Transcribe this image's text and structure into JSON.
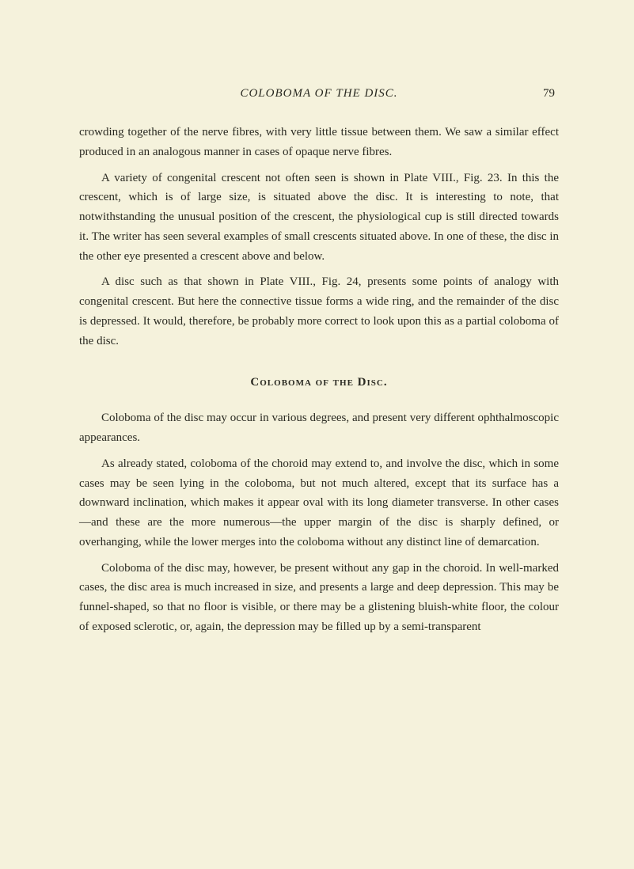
{
  "header": {
    "title": "COLOBOMA OF THE DISC.",
    "page_number": "79"
  },
  "paragraphs": {
    "p1": "crowding together of the nerve fibres, with very little tissue between them. We saw a similar effect produced in an analogous manner in cases of opaque nerve fibres.",
    "p2": "A variety of congenital crescent not often seen is shown in Plate VIII., Fig. 23. In this the crescent, which is of large size, is situated above the disc. It is interesting to note, that notwithstanding the unusual position of the crescent, the physiological cup is still directed towards it. The writer has seen several examples of small crescents situated above. In one of these, the disc in the other eye presented a crescent above and below.",
    "p3": "A disc such as that shown in Plate VIII., Fig. 24, presents some points of analogy with congenital crescent. But here the connective tissue forms a wide ring, and the remainder of the disc is depressed. It would, therefore, be probably more correct to look upon this as a partial coloboma of the disc."
  },
  "section_heading": "Coloboma of the Disc.",
  "section_paragraphs": {
    "sp1": "Coloboma of the disc may occur in various degrees, and present very different ophthalmoscopic appearances.",
    "sp2": "As already stated, coloboma of the choroid may extend to, and involve the disc, which in some cases may be seen lying in the coloboma, but not much altered, except that its surface has a downward inclination, which makes it appear oval with its long diameter transverse. In other cases—and these are the more numerous—the upper margin of the disc is sharply defined, or overhanging, while the lower merges into the coloboma without any distinct line of demarcation.",
    "sp3": "Coloboma of the disc may, however, be present without any gap in the choroid. In well-marked cases, the disc area is much increased in size, and presents a large and deep depression. This may be funnel-shaped, so that no floor is visible, or there may be a glistening bluish-white floor, the colour of exposed sclerotic, or, again, the depression may be filled up by a semi-transparent"
  }
}
